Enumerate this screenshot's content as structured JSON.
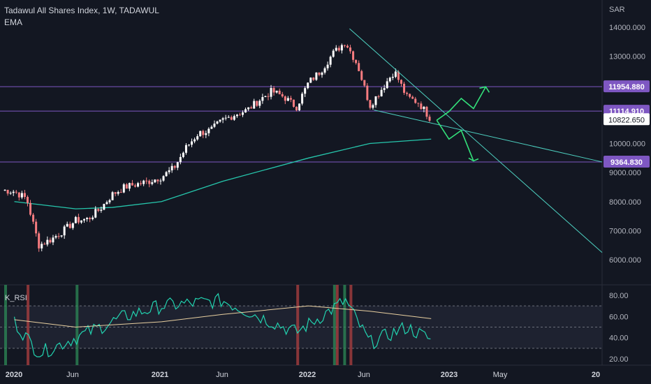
{
  "header": {
    "symbol_line": "Tadawul All Shares Index, 1W, TADAWUL",
    "indicator_label": "EMA"
  },
  "price_axis": {
    "currency": "SAR",
    "ticks": [
      "14000.000",
      "13000.000",
      "10000.000",
      "9000.000",
      "8000.000",
      "7000.000",
      "6000.000"
    ],
    "tick_values": [
      14000,
      13000,
      10000,
      9000,
      8000,
      7000,
      6000
    ]
  },
  "levels": [
    {
      "label": "11954.880",
      "value": 11954.88
    },
    {
      "label": "11114.910",
      "value": 11114.91
    },
    {
      "label": "9364.830",
      "value": 9364.83
    }
  ],
  "current_price": {
    "label": "10822.650",
    "value": 10822.65
  },
  "rsi_panel": {
    "label": "K_RSI",
    "ticks": [
      "80.00",
      "60.00",
      "40.00",
      "20.00"
    ],
    "tick_values": [
      80,
      60,
      40,
      20
    ],
    "upper_band": 70,
    "lower_band": 30
  },
  "time_axis": {
    "labels": [
      "2020",
      "Jun",
      "2021",
      "Jun",
      "2022",
      "Jun",
      "2023",
      "May",
      "20"
    ]
  },
  "colors": {
    "background": "#131722",
    "up_candle": "#ffffff",
    "down_candle": "#f77c80",
    "ema": "#26c6ac",
    "level_line": "#7e57c2",
    "trendline": "#4dd0c0",
    "projection": "#33e07a",
    "rsi_line": "#22d3b0",
    "rsi_signal": "#e8cfa0",
    "green_marker": "#2e8b57",
    "red_marker": "#b04040"
  },
  "chart_data": {
    "type": "candlestick",
    "timeframe": "1W",
    "price_axis_label": "SAR",
    "ohlc_close_path": [
      [
        "2019-12",
        8400
      ],
      [
        "2020-01",
        8350
      ],
      [
        "2020-02",
        8100
      ],
      [
        "2020-03",
        6500
      ],
      [
        "2020-04",
        6700
      ],
      [
        "2020-05",
        7000
      ],
      [
        "2020-06",
        7350
      ],
      [
        "2020-07",
        7400
      ],
      [
        "2020-08",
        7750
      ],
      [
        "2020-09",
        8250
      ],
      [
        "2020-10",
        8500
      ],
      [
        "2020-11",
        8600
      ],
      [
        "2020-12",
        8700
      ],
      [
        "2021-01",
        8850
      ],
      [
        "2021-02",
        9150
      ],
      [
        "2021-03",
        9850
      ],
      [
        "2021-04",
        10350
      ],
      [
        "2021-05",
        10450
      ],
      [
        "2021-06",
        10800
      ],
      [
        "2021-07",
        11000
      ],
      [
        "2021-08",
        11150
      ],
      [
        "2021-09",
        11500
      ],
      [
        "2021-10",
        11800
      ],
      [
        "2021-11",
        11600
      ],
      [
        "2021-12",
        11250
      ],
      [
        "2022-01",
        12100
      ],
      [
        "2022-02",
        12500
      ],
      [
        "2022-03",
        13100
      ],
      [
        "2022-04",
        13500
      ],
      [
        "2022-05",
        12700
      ],
      [
        "2022-06",
        11300
      ],
      [
        "2022-07",
        11900
      ],
      [
        "2022-08",
        12500
      ],
      [
        "2022-09",
        11600
      ],
      [
        "2022-10",
        11400
      ],
      [
        "2022-11",
        10822.65
      ]
    ],
    "ema_path": [
      [
        "2020-01",
        8000
      ],
      [
        "2020-06",
        7750
      ],
      [
        "2020-09",
        7800
      ],
      [
        "2021-01",
        8000
      ],
      [
        "2021-06",
        8700
      ],
      [
        "2022-01",
        9500
      ],
      [
        "2022-06",
        10000
      ],
      [
        "2022-11",
        10150
      ]
    ],
    "horizontal_levels": [
      11954.88,
      11114.91,
      9364.83
    ],
    "last_price": 10822.65,
    "k_rsi_path": [
      [
        "2020-01",
        55
      ],
      [
        "2020-03",
        25
      ],
      [
        "2020-06",
        40
      ],
      [
        "2020-10",
        60
      ],
      [
        "2021-01",
        70
      ],
      [
        "2021-06",
        75
      ],
      [
        "2021-12",
        45
      ],
      [
        "2022-04",
        75
      ],
      [
        "2022-06",
        35
      ],
      [
        "2022-09",
        50
      ],
      [
        "2022-11",
        38
      ]
    ],
    "rsi_signal_path": [
      [
        "2020-01",
        57
      ],
      [
        "2020-06",
        50
      ],
      [
        "2021-01",
        55
      ],
      [
        "2021-06",
        62
      ],
      [
        "2022-01",
        70
      ],
      [
        "2022-06",
        65
      ],
      [
        "2022-11",
        58
      ]
    ],
    "rsi_range": [
      20,
      85
    ],
    "rsi_bands": [
      70,
      50,
      30
    ]
  }
}
